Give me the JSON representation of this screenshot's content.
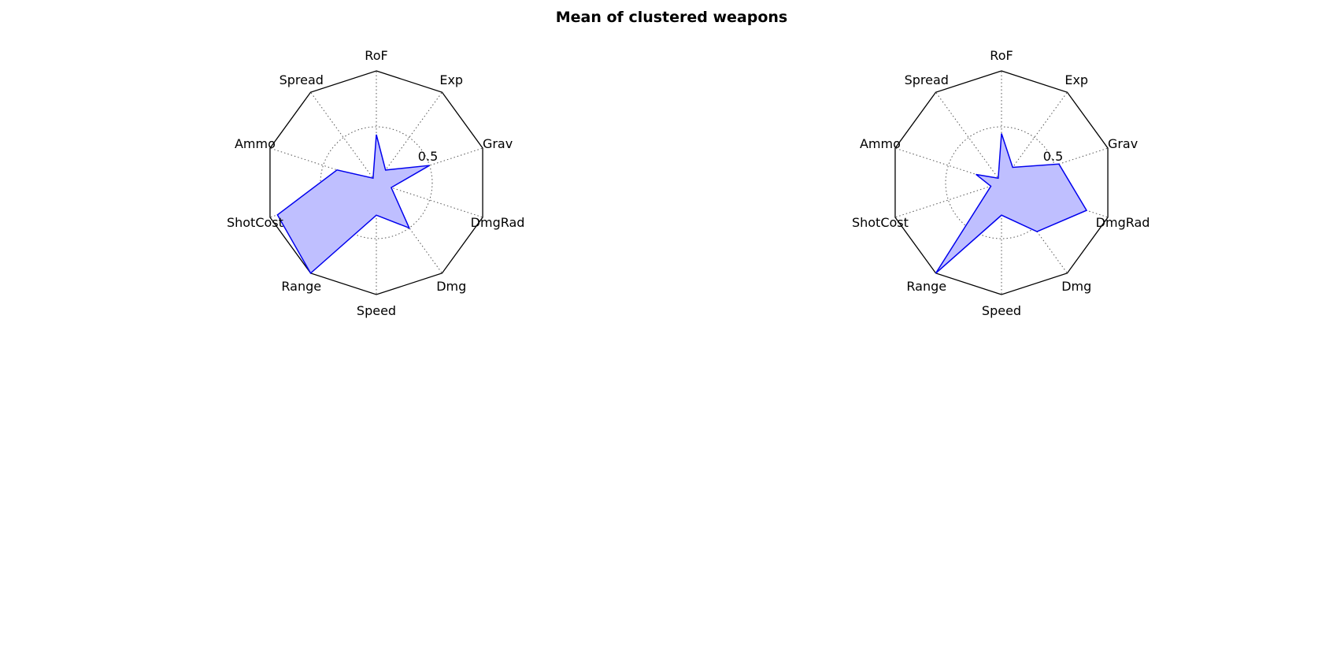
{
  "figure": {
    "title": "Mean of clustered weapons"
  },
  "chart_data": [
    {
      "type": "radar",
      "shape": "decagon",
      "axes": [
        "RoF",
        "Exp",
        "Grav",
        "DmgRad",
        "Dmg",
        "Speed",
        "Range",
        "ShotCost",
        "Ammo",
        "Spread"
      ],
      "rmax": 1.0,
      "rgrid": [
        0.5
      ],
      "rtick_labels": [
        "0.5"
      ],
      "grid": true,
      "series": [
        {
          "values": [
            0.43,
            0.14,
            0.5,
            0.14,
            0.5,
            0.29,
            1.0,
            0.93,
            0.37,
            0.05
          ]
        }
      ],
      "colors": {
        "line": "#0000ee",
        "fill": "#bfbfff"
      }
    },
    {
      "type": "radar",
      "shape": "decagon",
      "axes": [
        "RoF",
        "Exp",
        "Grav",
        "DmgRad",
        "Dmg",
        "Speed",
        "Range",
        "ShotCost",
        "Ammo",
        "Spread"
      ],
      "rmax": 1.0,
      "rgrid": [
        0.5
      ],
      "rtick_labels": [
        "0.5"
      ],
      "grid": true,
      "series": [
        {
          "values": [
            0.44,
            0.17,
            0.54,
            0.8,
            0.54,
            0.29,
            1.0,
            0.1,
            0.24,
            0.05
          ]
        }
      ],
      "colors": {
        "line": "#0000ee",
        "fill": "#bfbfff"
      }
    }
  ]
}
